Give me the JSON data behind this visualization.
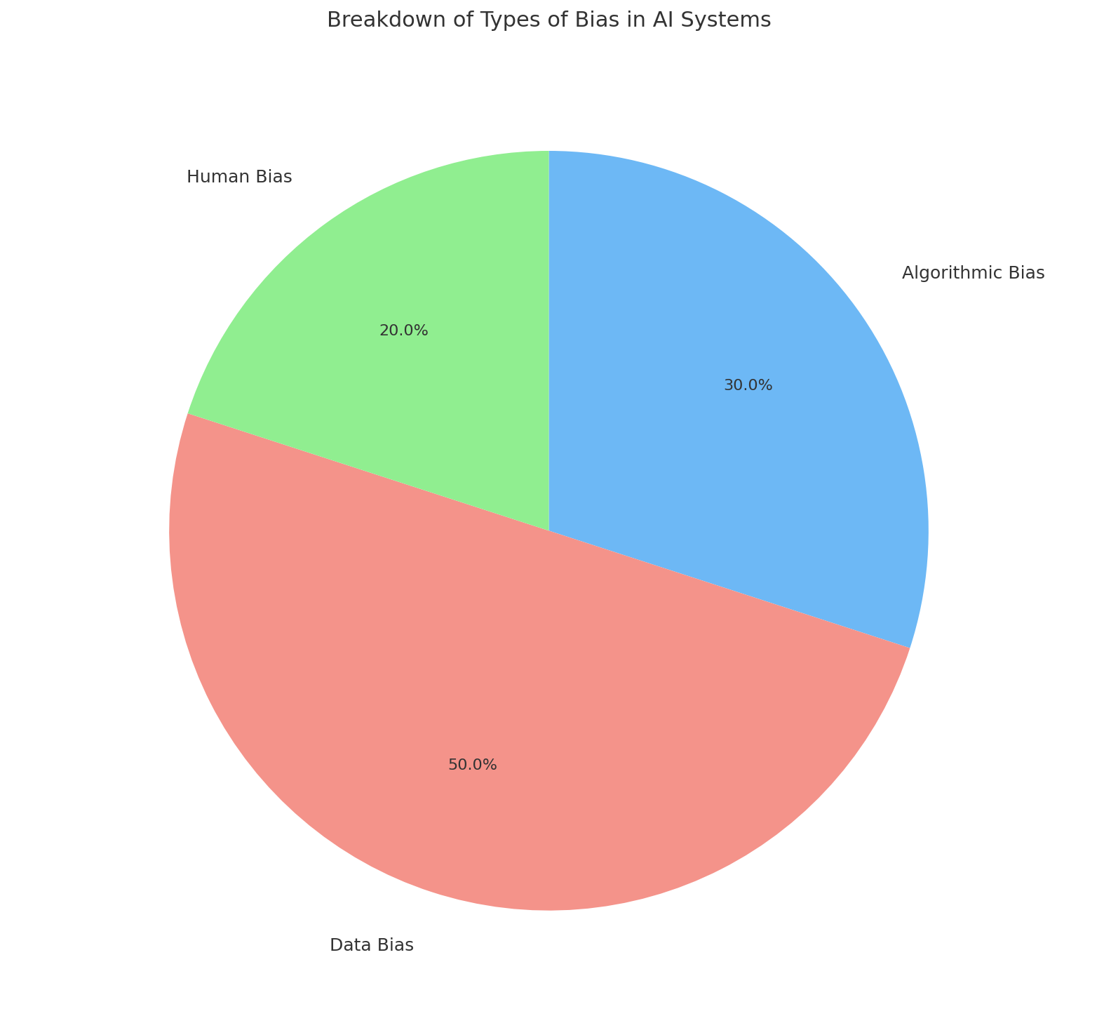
{
  "title": "Breakdown of Types of Bias in AI Systems",
  "title_fontsize": 22,
  "labels": [
    "Algorithmic Bias",
    "Data Bias",
    "Human Bias"
  ],
  "values": [
    30.0,
    50.0,
    20.0
  ],
  "colors": [
    "#6db8f5",
    "#f4938a",
    "#90ee90"
  ],
  "autopct_fontsize": 16,
  "label_fontsize": 18,
  "startangle": 90,
  "background_color": "#ffffff",
  "pctdistance": 0.65,
  "labeldistance": 1.15
}
